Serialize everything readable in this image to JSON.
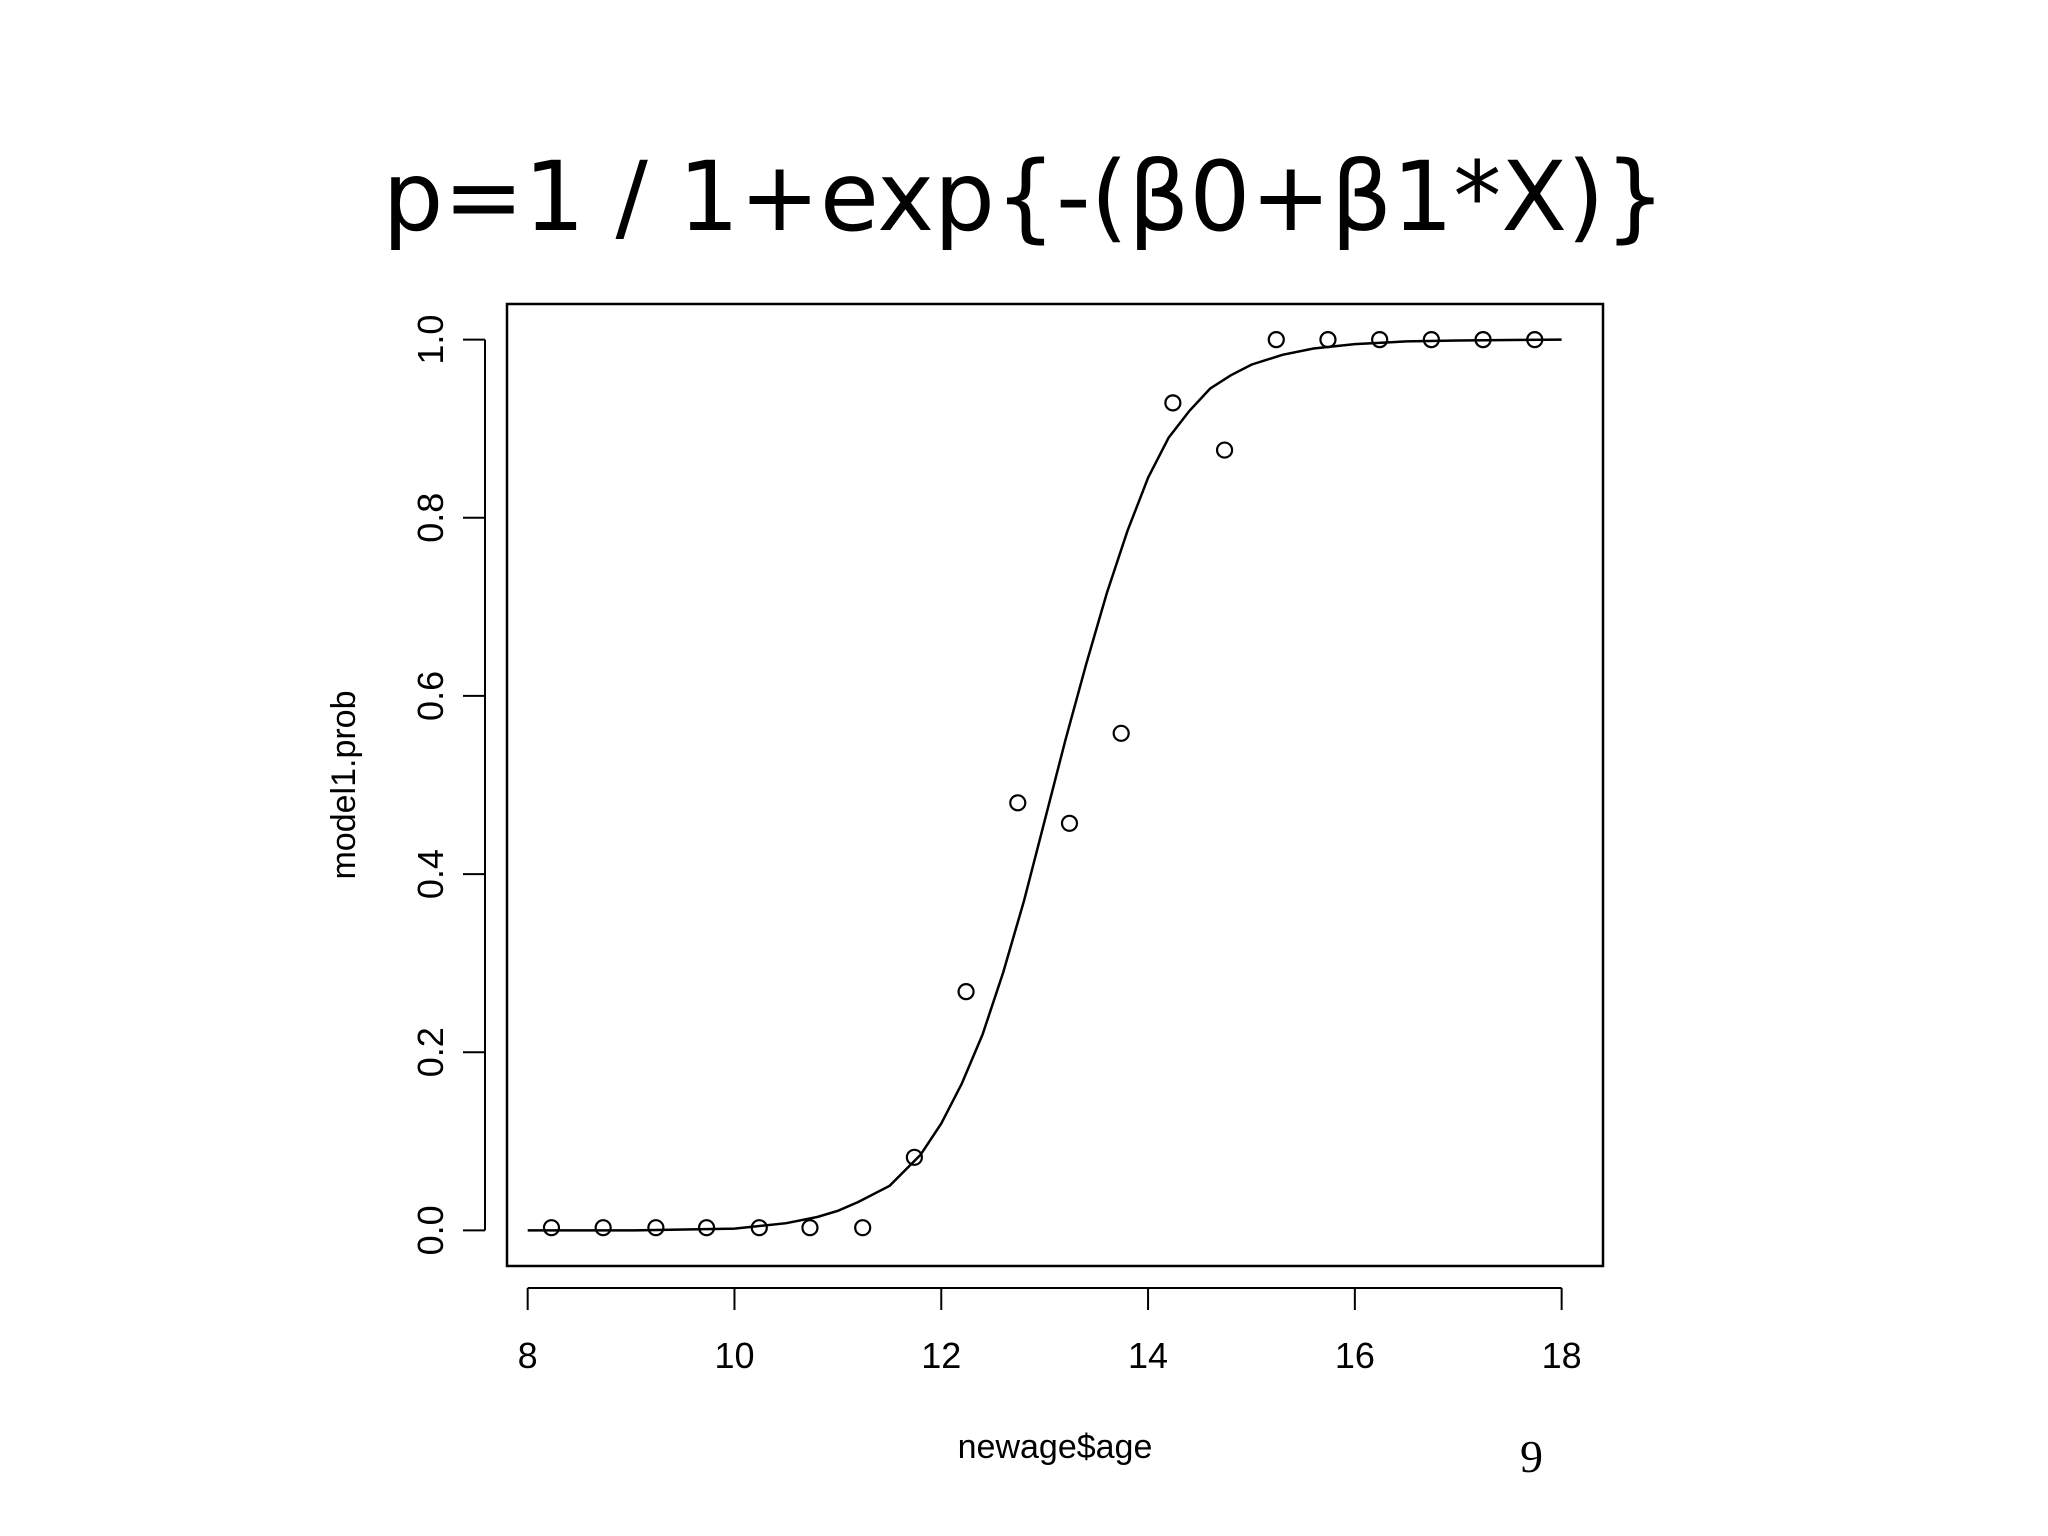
{
  "slide": {
    "title": "p=1 / 1+exp{-(β0+β1*X)}",
    "page_number": "9"
  },
  "chart_data": {
    "type": "scatter",
    "xlabel": "newage$age",
    "ylabel": "model1.prob",
    "xlim": [
      7.8,
      18.4
    ],
    "ylim": [
      -0.04,
      1.04
    ],
    "x_ticks": [
      8,
      10,
      12,
      14,
      16,
      18
    ],
    "x_tick_labels": [
      "8",
      "10",
      "12",
      "14",
      "16",
      "18"
    ],
    "y_ticks": [
      0,
      0.2,
      0.4,
      0.6,
      0.8,
      1.0
    ],
    "y_tick_labels": [
      "0.0",
      "0.2",
      "0.4",
      "0.6",
      "0.8",
      "1.0"
    ],
    "grid": false,
    "series": [
      {
        "type": "scatter",
        "x": [
          8.23,
          8.73,
          9.24,
          9.73,
          10.24,
          10.73,
          11.24,
          11.74,
          12.24,
          12.74,
          13.24,
          13.74,
          14.24,
          14.74,
          15.24,
          15.74,
          16.24,
          16.74,
          17.24,
          17.74
        ],
        "y": [
          0.003,
          0.003,
          0.003,
          0.003,
          0.003,
          0.003,
          0.003,
          0.082,
          0.268,
          0.48,
          0.457,
          0.558,
          0.929,
          0.876,
          1.0,
          1.0,
          1.0,
          1.0,
          1.0,
          1.0
        ]
      },
      {
        "type": "line",
        "x": [
          8.0,
          9.0,
          10.0,
          10.5,
          10.8,
          11.0,
          11.2,
          11.5,
          11.8,
          12.0,
          12.2,
          12.4,
          12.6,
          12.8,
          13.0,
          13.2,
          13.4,
          13.6,
          13.8,
          14.0,
          14.2,
          14.4,
          14.6,
          14.8,
          15.0,
          15.3,
          15.6,
          16.0,
          16.5,
          17.0,
          18.0
        ],
        "y": [
          0.0,
          0.0,
          0.002,
          0.008,
          0.015,
          0.022,
          0.032,
          0.05,
          0.085,
          0.12,
          0.165,
          0.22,
          0.29,
          0.37,
          0.46,
          0.55,
          0.635,
          0.715,
          0.785,
          0.845,
          0.89,
          0.92,
          0.945,
          0.96,
          0.972,
          0.983,
          0.99,
          0.995,
          0.998,
          0.999,
          1.0
        ]
      }
    ]
  }
}
